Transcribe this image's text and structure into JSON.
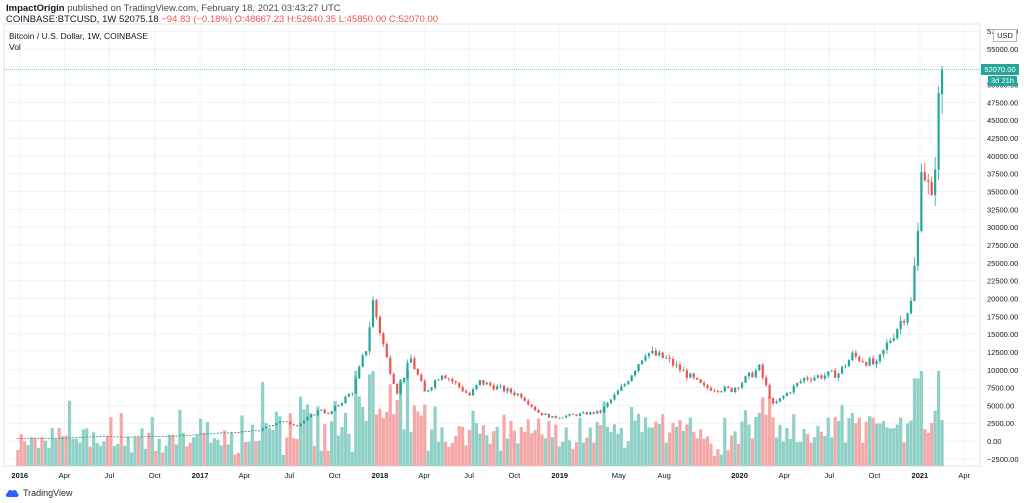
{
  "header": {
    "publisher": "ImpactOrigin",
    "published_text": "published on TradingView.com, February 18, 2021 03:43:27 UTC",
    "symbol_text": "COINBASE:BTCUSD, 1W",
    "open_label": "52075.18",
    "change_text": "−94.83 (−0.18%)",
    "ohlc": {
      "o": "O:48667.23",
      "h": "H:52640.35",
      "l": "L:45850.00",
      "c": "C:52070.00"
    }
  },
  "legend": {
    "title": "Bitcoin / U.S. Dollar, 1W, COINBASE",
    "vol_label": "Vol"
  },
  "price_scale": {
    "currency": "USD",
    "last_price": "52070.00",
    "countdown": "3d 21h"
  },
  "footer": {
    "brand": "TradingView"
  },
  "colors": {
    "up": "#26a69a",
    "down": "#ef5350",
    "vol_up": "#8fd1c7",
    "vol_down": "#f5a8a8"
  },
  "chart_data": {
    "type": "candlestick",
    "title": "Bitcoin / U.S. Dollar, 1W, COINBASE",
    "x_ticks": [
      "2016",
      "Apr",
      "Jul",
      "Oct",
      "2017",
      "Apr",
      "Jul",
      "Oct",
      "2018",
      "Apr",
      "Jul",
      "Oct",
      "2019",
      "May",
      "Aug",
      "2020",
      "Apr",
      "Jul",
      "Oct",
      "2021",
      "Apr"
    ],
    "y_ticks": [
      "57500.00",
      "55000.00",
      "52500.00",
      "50000.00",
      "47500.00",
      "45000.00",
      "42500.00",
      "40000.00",
      "37500.00",
      "35000.00",
      "32500.00",
      "30000.00",
      "27500.00",
      "25000.00",
      "22500.00",
      "20000.00",
      "17500.00",
      "15000.00",
      "12500.00",
      "10000.00",
      "7500.00",
      "5000.00",
      "2500.00",
      "0.00",
      "−2500.00"
    ],
    "ylim": [
      -3500,
      58500
    ],
    "weekly_close_anchors": [
      [
        "2015-12-28",
        430
      ],
      [
        "2016-03-28",
        420
      ],
      [
        "2016-06-13",
        700
      ],
      [
        "2016-08-01",
        600
      ],
      [
        "2016-10-31",
        720
      ],
      [
        "2016-12-26",
        960
      ],
      [
        "2017-03-06",
        1200
      ],
      [
        "2017-05-01",
        1500
      ],
      [
        "2017-06-12",
        2800
      ],
      [
        "2017-07-17",
        2200
      ],
      [
        "2017-09-04",
        4500
      ],
      [
        "2017-09-18",
        3700
      ],
      [
        "2017-11-06",
        7000
      ],
      [
        "2017-12-04",
        13000
      ],
      [
        "2017-12-18",
        19500
      ],
      [
        "2018-01-15",
        11500
      ],
      [
        "2018-02-05",
        7000
      ],
      [
        "2018-03-05",
        11500
      ],
      [
        "2018-04-02",
        6800
      ],
      [
        "2018-05-07",
        9600
      ],
      [
        "2018-07-02",
        6400
      ],
      [
        "2018-07-23",
        8300
      ],
      [
        "2018-10-15",
        6400
      ],
      [
        "2018-11-19",
        4000
      ],
      [
        "2018-12-17",
        3300
      ],
      [
        "2019-03-25",
        4100
      ],
      [
        "2019-05-13",
        8000
      ],
      [
        "2019-06-24",
        12500
      ],
      [
        "2019-08-05",
        11500
      ],
      [
        "2019-10-21",
        7500
      ],
      [
        "2019-12-16",
        7200
      ],
      [
        "2020-02-10",
        10200
      ],
      [
        "2020-03-09",
        5000
      ],
      [
        "2020-05-11",
        8800
      ],
      [
        "2020-07-20",
        9500
      ],
      [
        "2020-08-17",
        12000
      ],
      [
        "2020-10-05",
        10600
      ],
      [
        "2020-10-26",
        13500
      ],
      [
        "2020-12-14",
        19300
      ],
      [
        "2020-12-28",
        29000
      ],
      [
        "2021-01-04",
        40000
      ],
      [
        "2021-01-25",
        33000
      ],
      [
        "2021-02-01",
        40000
      ],
      [
        "2021-02-08",
        47000
      ],
      [
        "2021-02-15",
        52070
      ]
    ],
    "last_bar": {
      "date": "2021-02-15",
      "open": 48667.23,
      "high": 52640.35,
      "low": 45850.0,
      "close": 52070.0,
      "change": -94.83,
      "change_pct": -0.18
    },
    "volume_scale_note": "volume histogram overlaid on lower price scale"
  }
}
